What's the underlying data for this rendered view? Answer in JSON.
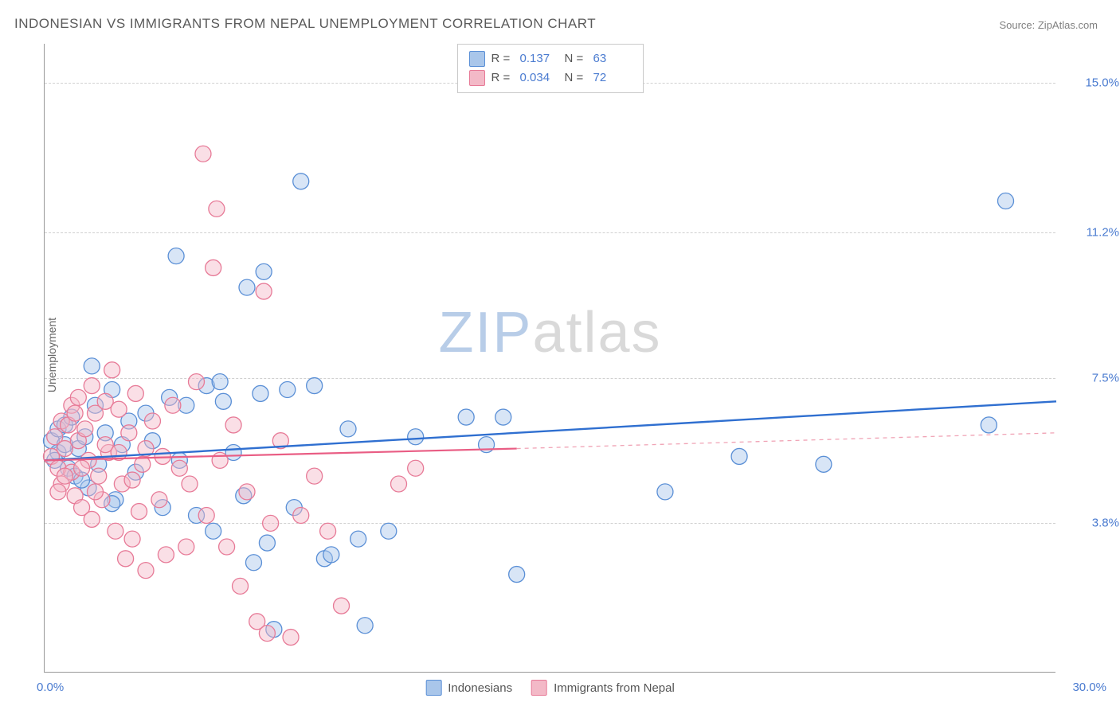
{
  "title": "INDONESIAN VS IMMIGRANTS FROM NEPAL UNEMPLOYMENT CORRELATION CHART",
  "source": "Source: ZipAtlas.com",
  "ylabel": "Unemployment",
  "watermark": {
    "a": "ZIP",
    "b": "atlas"
  },
  "chart": {
    "type": "scatter",
    "xlim": [
      0,
      30
    ],
    "ylim": [
      0,
      16
    ],
    "xticks": {
      "min": "0.0%",
      "max": "30.0%"
    },
    "yticks": [
      {
        "v": 3.8,
        "label": "3.8%"
      },
      {
        "v": 7.5,
        "label": "7.5%"
      },
      {
        "v": 11.2,
        "label": "11.2%"
      },
      {
        "v": 15.0,
        "label": "15.0%"
      }
    ],
    "background_color": "#ffffff",
    "grid_color": "#d0d0d0",
    "axis_color": "#999999",
    "tick_text_color": "#4a7bd0",
    "marker_radius": 10,
    "marker_opacity": 0.45,
    "series": [
      {
        "name": "Indonesians",
        "color_fill": "#a9c6ea",
        "color_stroke": "#5a8fd6",
        "r": 0.137,
        "n": 63,
        "trend": {
          "x1": 0,
          "y1": 5.4,
          "x2": 30,
          "y2": 6.9,
          "color": "#2f6fd0",
          "width": 2.4,
          "dash": null
        },
        "points": [
          [
            0.2,
            5.9
          ],
          [
            0.4,
            6.2
          ],
          [
            0.4,
            5.6
          ],
          [
            0.6,
            6.3
          ],
          [
            0.7,
            5.2
          ],
          [
            0.8,
            6.5
          ],
          [
            0.9,
            5.0
          ],
          [
            1.0,
            5.7
          ],
          [
            1.2,
            6.0
          ],
          [
            1.3,
            4.7
          ],
          [
            1.5,
            6.8
          ],
          [
            1.6,
            5.3
          ],
          [
            1.8,
            6.1
          ],
          [
            2.0,
            7.2
          ],
          [
            2.1,
            4.4
          ],
          [
            2.3,
            5.8
          ],
          [
            2.5,
            6.4
          ],
          [
            2.7,
            5.1
          ],
          [
            1.4,
            7.8
          ],
          [
            3.0,
            6.6
          ],
          [
            3.9,
            10.6
          ],
          [
            3.5,
            4.2
          ],
          [
            3.7,
            7.0
          ],
          [
            4.0,
            5.4
          ],
          [
            4.2,
            6.8
          ],
          [
            4.5,
            4.0
          ],
          [
            4.8,
            7.3
          ],
          [
            5.0,
            3.6
          ],
          [
            5.3,
            6.9
          ],
          [
            5.6,
            5.6
          ],
          [
            5.9,
            4.5
          ],
          [
            6.0,
            9.8
          ],
          [
            6.2,
            2.8
          ],
          [
            6.4,
            7.1
          ],
          [
            6.5,
            10.2
          ],
          [
            6.6,
            3.3
          ],
          [
            6.8,
            1.1
          ],
          [
            7.2,
            7.2
          ],
          [
            7.6,
            12.5
          ],
          [
            8.0,
            7.3
          ],
          [
            8.3,
            2.9
          ],
          [
            8.5,
            3.0
          ],
          [
            9.0,
            6.2
          ],
          [
            9.3,
            3.4
          ],
          [
            9.5,
            1.2
          ],
          [
            10.2,
            3.6
          ],
          [
            11.0,
            6.0
          ],
          [
            12.5,
            6.5
          ],
          [
            13.1,
            5.8
          ],
          [
            13.6,
            6.5
          ],
          [
            14.0,
            2.5
          ],
          [
            18.4,
            4.6
          ],
          [
            20.6,
            5.5
          ],
          [
            23.1,
            5.3
          ],
          [
            28.0,
            6.3
          ],
          [
            28.5,
            12.0
          ],
          [
            1.1,
            4.9
          ],
          [
            2.0,
            4.3
          ],
          [
            3.2,
            5.9
          ],
          [
            0.3,
            5.4
          ],
          [
            0.6,
            5.8
          ],
          [
            5.2,
            7.4
          ],
          [
            7.4,
            4.2
          ]
        ]
      },
      {
        "name": "Immigrants from Nepal",
        "color_fill": "#f3b9c7",
        "color_stroke": "#e77a97",
        "r": 0.034,
        "n": 72,
        "trend": {
          "x1": 0,
          "y1": 5.4,
          "x2": 14,
          "y2": 5.7,
          "color": "#e95d84",
          "width": 2.2,
          "dash": null
        },
        "trend_ext": {
          "x1": 14,
          "y1": 5.7,
          "x2": 30,
          "y2": 6.1,
          "color": "#f0a3b5",
          "width": 1.3,
          "dash": "5,5"
        },
        "points": [
          [
            0.2,
            5.5
          ],
          [
            0.3,
            6.0
          ],
          [
            0.4,
            5.2
          ],
          [
            0.5,
            6.4
          ],
          [
            0.5,
            4.8
          ],
          [
            0.6,
            5.7
          ],
          [
            0.7,
            6.3
          ],
          [
            0.8,
            5.1
          ],
          [
            0.8,
            6.8
          ],
          [
            0.9,
            4.5
          ],
          [
            1.0,
            5.9
          ],
          [
            1.0,
            7.0
          ],
          [
            1.1,
            4.2
          ],
          [
            1.2,
            6.2
          ],
          [
            1.3,
            5.4
          ],
          [
            1.4,
            7.3
          ],
          [
            1.4,
            3.9
          ],
          [
            1.5,
            6.6
          ],
          [
            1.6,
            5.0
          ],
          [
            1.7,
            4.4
          ],
          [
            1.8,
            6.9
          ],
          [
            1.9,
            5.6
          ],
          [
            2.0,
            7.7
          ],
          [
            2.1,
            3.6
          ],
          [
            2.2,
            6.7
          ],
          [
            2.3,
            4.8
          ],
          [
            2.4,
            2.9
          ],
          [
            2.5,
            6.1
          ],
          [
            2.6,
            3.4
          ],
          [
            2.7,
            7.1
          ],
          [
            2.8,
            4.1
          ],
          [
            2.9,
            5.3
          ],
          [
            3.0,
            2.6
          ],
          [
            3.2,
            6.4
          ],
          [
            3.4,
            4.4
          ],
          [
            3.6,
            3.0
          ],
          [
            3.8,
            6.8
          ],
          [
            4.0,
            5.2
          ],
          [
            4.2,
            3.2
          ],
          [
            4.5,
            7.4
          ],
          [
            4.7,
            13.2
          ],
          [
            4.8,
            4.0
          ],
          [
            5.0,
            10.3
          ],
          [
            5.1,
            11.8
          ],
          [
            5.4,
            3.2
          ],
          [
            5.6,
            6.3
          ],
          [
            5.8,
            2.2
          ],
          [
            6.0,
            4.6
          ],
          [
            6.3,
            1.3
          ],
          [
            6.5,
            9.7
          ],
          [
            6.7,
            3.8
          ],
          [
            6.6,
            1.0
          ],
          [
            7.0,
            5.9
          ],
          [
            7.3,
            0.9
          ],
          [
            7.6,
            4.0
          ],
          [
            8.0,
            5.0
          ],
          [
            8.4,
            3.6
          ],
          [
            8.8,
            1.7
          ],
          [
            10.5,
            4.8
          ],
          [
            11.0,
            5.2
          ],
          [
            0.4,
            4.6
          ],
          [
            0.6,
            5.0
          ],
          [
            0.9,
            6.6
          ],
          [
            1.1,
            5.2
          ],
          [
            1.5,
            4.6
          ],
          [
            1.8,
            5.8
          ],
          [
            2.2,
            5.6
          ],
          [
            2.6,
            4.9
          ],
          [
            3.0,
            5.7
          ],
          [
            3.5,
            5.5
          ],
          [
            4.3,
            4.8
          ],
          [
            5.2,
            5.4
          ]
        ]
      }
    ]
  },
  "stats_box": {
    "labels": {
      "r": "R  =",
      "n": "N  ="
    }
  },
  "legend_bottom": {
    "items": [
      {
        "label": "Indonesians",
        "fill": "#a9c6ea",
        "stroke": "#5a8fd6"
      },
      {
        "label": "Immigrants from Nepal",
        "fill": "#f3b9c7",
        "stroke": "#e77a97"
      }
    ]
  }
}
